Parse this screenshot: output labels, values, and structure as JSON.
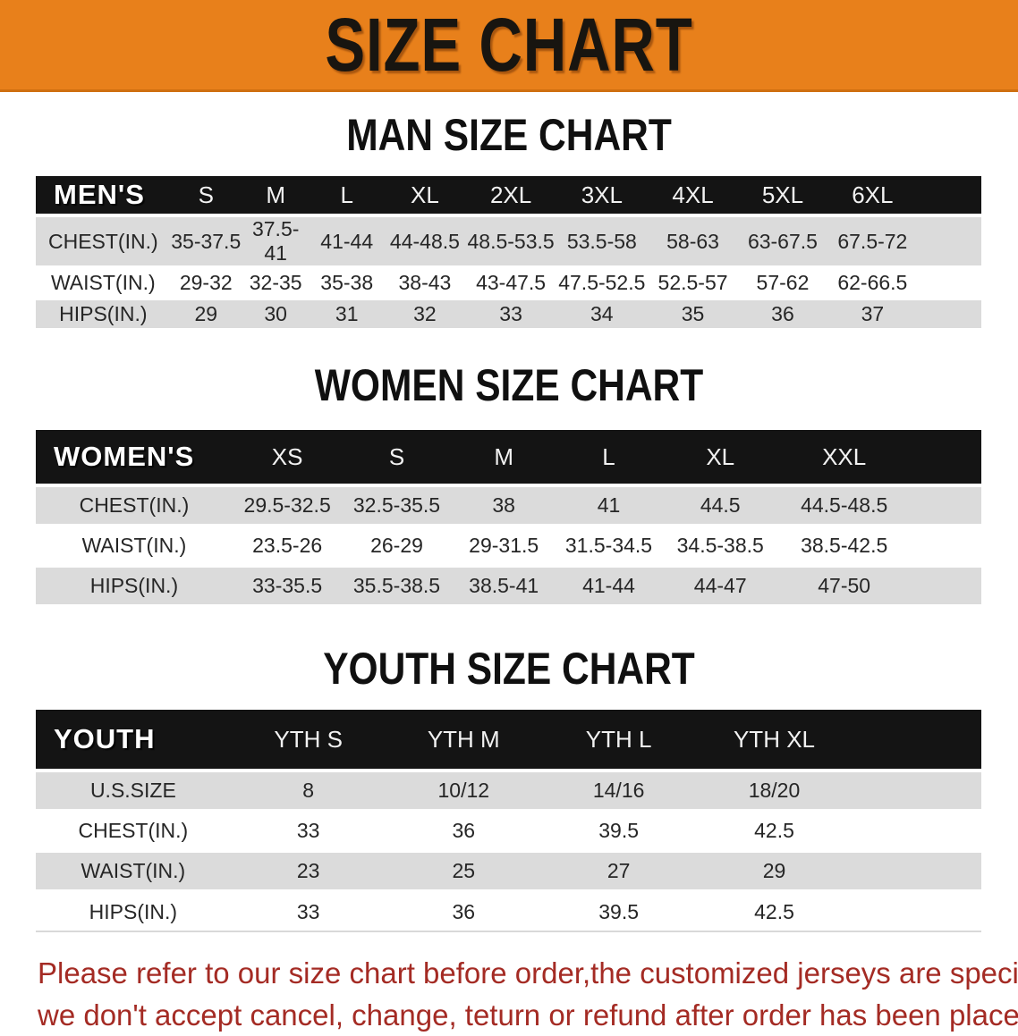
{
  "banner": {
    "title": "SIZE CHART",
    "bg_color": "#E8801B"
  },
  "sections": {
    "men": {
      "heading": "MAN SIZE CHART"
    },
    "women": {
      "heading": "WOMEN SIZE CHART"
    },
    "youth": {
      "heading": "YOUTH SIZE CHART"
    }
  },
  "tables": {
    "men": {
      "header_label": "MEN'S",
      "columns": [
        "S",
        "M",
        "L",
        "XL",
        "2XL",
        "3XL",
        "4XL",
        "5XL",
        "6XL"
      ],
      "rows": [
        {
          "label": "CHEST(IN.)",
          "values": [
            "35-37.5",
            "37.5-41",
            "41-44",
            "44-48.5",
            "48.5-53.5",
            "53.5-58",
            "58-63",
            "63-67.5",
            "67.5-72"
          ]
        },
        {
          "label": "WAIST(IN.)",
          "values": [
            "29-32",
            "32-35",
            "35-38",
            "38-43",
            "43-47.5",
            "47.5-52.5",
            "52.5-57",
            "57-62",
            "62-66.5"
          ]
        },
        {
          "label": "HIPS(IN.)",
          "values": [
            "29",
            "30",
            "31",
            "32",
            "33",
            "34",
            "35",
            "36",
            "37"
          ]
        }
      ]
    },
    "women": {
      "header_label": "WOMEN'S",
      "columns": [
        "XS",
        "S",
        "M",
        "L",
        "XL",
        "XXL"
      ],
      "rows": [
        {
          "label": "CHEST(IN.)",
          "values": [
            "29.5-32.5",
            "32.5-35.5",
            "38",
            "41",
            "44.5",
            "44.5-48.5"
          ]
        },
        {
          "label": "WAIST(IN.)",
          "values": [
            "23.5-26",
            "26-29",
            "29-31.5",
            "31.5-34.5",
            "34.5-38.5",
            "38.5-42.5"
          ]
        },
        {
          "label": "HIPS(IN.)",
          "values": [
            "33-35.5",
            "35.5-38.5",
            "38.5-41",
            "41-44",
            "44-47",
            "47-50"
          ]
        }
      ]
    },
    "youth": {
      "header_label": "YOUTH",
      "columns": [
        "YTH S",
        "YTH M",
        "YTH L",
        "YTH XL"
      ],
      "rows": [
        {
          "label": "U.S.SIZE",
          "values": [
            "8",
            "10/12",
            "14/16",
            "18/20"
          ]
        },
        {
          "label": "CHEST(IN.)",
          "values": [
            "33",
            "36",
            "39.5",
            "42.5"
          ]
        },
        {
          "label": "WAIST(IN.)",
          "values": [
            "23",
            "25",
            "27",
            "29"
          ]
        },
        {
          "label": "HIPS(IN.)",
          "values": [
            "33",
            "36",
            "39.5",
            "42.5"
          ]
        }
      ]
    }
  },
  "footer": {
    "line1": "Please refer to our size chart before order,the customized jerseys are special products,",
    "line2": "we don't accept cancel, change, teturn or refund after order has been placed!",
    "text_color": "#A42B24"
  }
}
